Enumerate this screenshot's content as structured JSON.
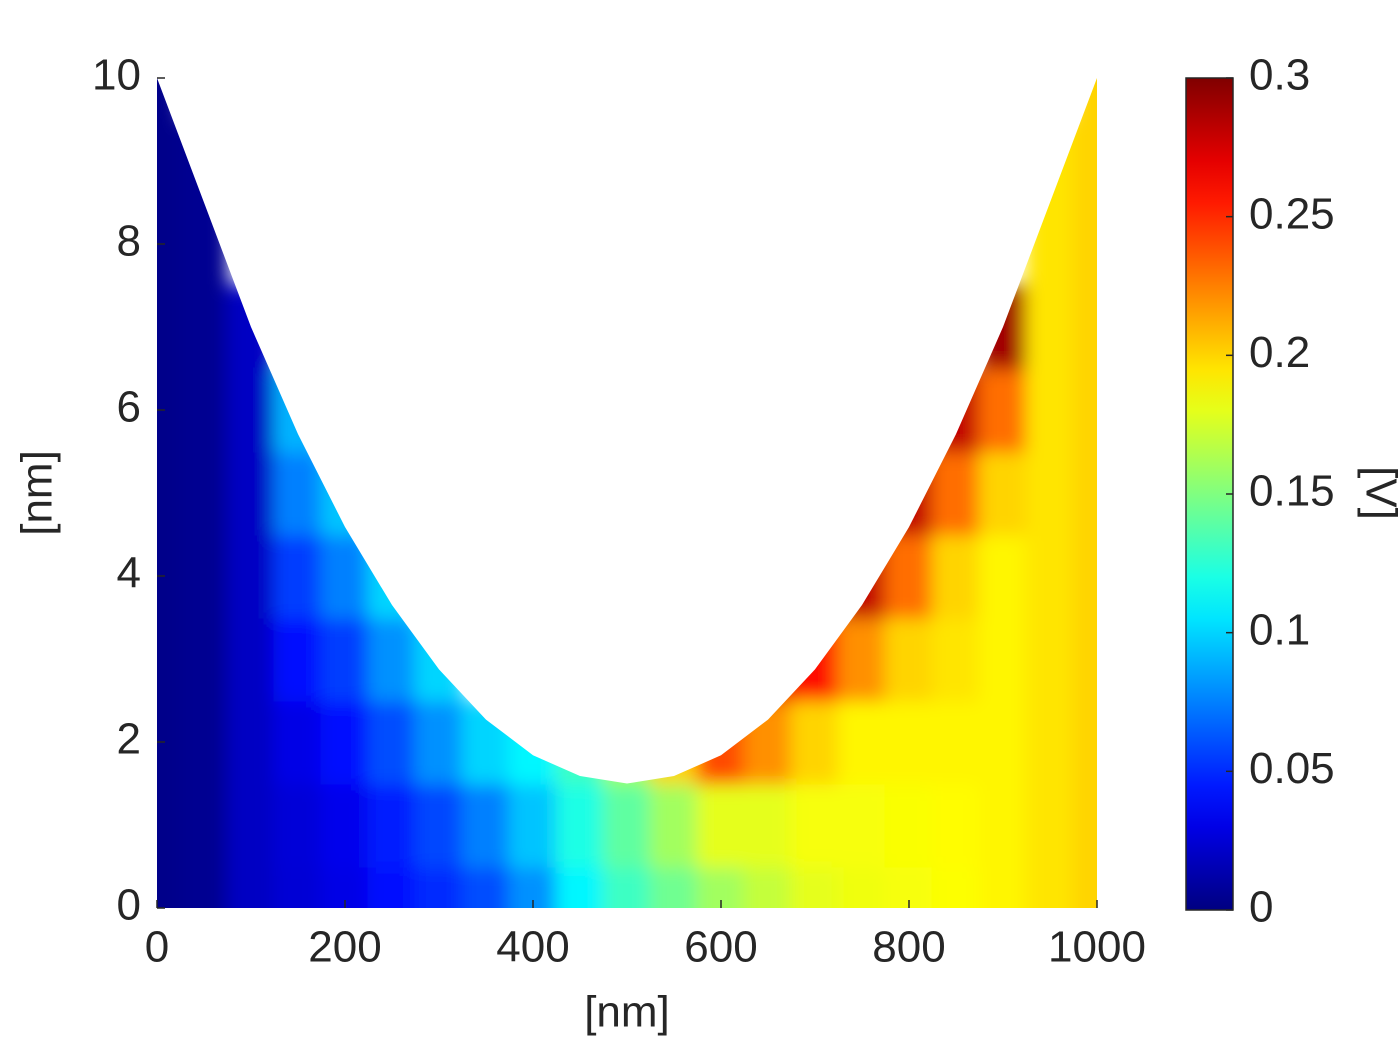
{
  "chart_data": {
    "type": "heatmap",
    "xlabel": "[nm]",
    "ylabel": "[nm]",
    "colorbar_label": "[V]",
    "xlim": [
      0,
      1000
    ],
    "xticks": [
      0,
      200,
      400,
      600,
      800,
      1000
    ],
    "ylim": [
      0,
      10
    ],
    "yticks": [
      0,
      2,
      4,
      6,
      8,
      10
    ],
    "clim": [
      0,
      0.3
    ],
    "cticks": [
      0,
      0.05,
      0.1,
      0.15,
      0.2,
      0.25,
      0.3
    ],
    "colormap": "jet",
    "boundary": {
      "x": [
        0,
        50,
        100,
        150,
        200,
        250,
        300,
        350,
        400,
        450,
        500,
        550,
        600,
        650,
        700,
        750,
        800,
        850,
        900,
        950,
        1000
      ],
      "y": [
        10,
        8.5,
        7,
        5.71,
        4.59,
        3.65,
        2.875,
        2.27,
        1.84,
        1.59,
        1.5,
        1.59,
        1.84,
        2.27,
        2.875,
        3.65,
        4.59,
        5.71,
        7,
        8.5,
        10
      ]
    },
    "x": [
      0,
      50,
      100,
      150,
      200,
      250,
      300,
      350,
      400,
      450,
      500,
      550,
      600,
      650,
      700,
      750,
      800,
      850,
      900,
      950,
      1000
    ],
    "y": [
      0,
      1,
      2,
      3,
      4,
      5,
      6,
      7,
      8,
      9,
      10
    ],
    "z": [
      [
        0.003,
        0.003,
        0.003,
        0.003,
        0.003,
        0.003,
        0.003,
        0.003,
        0.003,
        0.003,
        0.003
      ],
      [
        0.005,
        0.005,
        0.005,
        0.005,
        0.005,
        0.005,
        0.005,
        0.005,
        0.005,
        0.005,
        null
      ],
      [
        0.02,
        0.02,
        0.02,
        0.02,
        0.02,
        0.02,
        0.02,
        0.02,
        null,
        null,
        null
      ],
      [
        0.025,
        0.026,
        0.03,
        0.04,
        0.055,
        0.075,
        0.09,
        null,
        null,
        null,
        null
      ],
      [
        0.03,
        0.032,
        0.04,
        0.055,
        0.075,
        0.095,
        null,
        null,
        null,
        null,
        null
      ],
      [
        0.04,
        0.045,
        0.06,
        0.08,
        0.1,
        null,
        null,
        null,
        null,
        null,
        null
      ],
      [
        0.05,
        0.058,
        0.08,
        0.1,
        null,
        null,
        null,
        null,
        null,
        null,
        null
      ],
      [
        0.06,
        0.075,
        0.1,
        null,
        null,
        null,
        null,
        null,
        null,
        null,
        null
      ],
      [
        0.08,
        0.095,
        0.11,
        null,
        null,
        null,
        null,
        null,
        null,
        null,
        null
      ],
      [
        0.11,
        0.12,
        0.13,
        null,
        null,
        null,
        null,
        null,
        null,
        null,
        null
      ],
      [
        0.13,
        0.14,
        0.16,
        null,
        null,
        null,
        null,
        null,
        null,
        null,
        null
      ],
      [
        0.145,
        0.16,
        0.2,
        null,
        null,
        null,
        null,
        null,
        null,
        null,
        null
      ],
      [
        0.16,
        0.18,
        0.24,
        null,
        null,
        null,
        null,
        null,
        null,
        null,
        null
      ],
      [
        0.17,
        0.18,
        0.22,
        0.27,
        null,
        null,
        null,
        null,
        null,
        null,
        null
      ],
      [
        0.18,
        0.185,
        0.2,
        0.26,
        null,
        null,
        null,
        null,
        null,
        null,
        null
      ],
      [
        0.183,
        0.185,
        0.19,
        0.22,
        0.28,
        null,
        null,
        null,
        null,
        null,
        null
      ],
      [
        0.185,
        0.186,
        0.19,
        0.2,
        0.23,
        0.28,
        null,
        null,
        null,
        null,
        null
      ],
      [
        0.187,
        0.188,
        0.19,
        0.195,
        0.2,
        0.23,
        0.28,
        null,
        null,
        null,
        null
      ],
      [
        0.19,
        0.19,
        0.19,
        0.19,
        0.19,
        0.2,
        0.23,
        0.29,
        null,
        null,
        null
      ],
      [
        0.195,
        0.195,
        0.195,
        0.195,
        0.195,
        0.195,
        0.195,
        0.195,
        0.195,
        0.195,
        null
      ],
      [
        0.2,
        0.2,
        0.2,
        0.2,
        0.2,
        0.2,
        0.2,
        0.2,
        0.2,
        0.2,
        0.2
      ]
    ]
  }
}
